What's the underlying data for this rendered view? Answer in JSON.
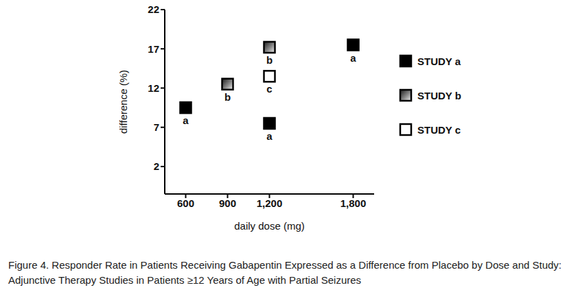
{
  "chart_data": {
    "type": "scatter",
    "title": "Figure 4. Responder Rate in Patients Receiving Gabapentin Expressed as a Difference from Placebo by Dose and Study: Adjunctive Therapy Studies in Patients ≥12 Years of Age with Partial Seizures",
    "x_label": "daily dose (mg)",
    "y_label": "difference (%)",
    "xlim": [
      450,
      1950
    ],
    "xticks": [
      600,
      900,
      {
        "value": 1200,
        "label": "1,200"
      },
      {
        "value": 1800,
        "label": "1,800"
      }
    ],
    "ylim": [
      -1.5,
      22
    ],
    "yticks": [
      2,
      7,
      12,
      17,
      22
    ],
    "grid": false,
    "legend": "right",
    "series": [
      {
        "name": "STUDY a",
        "label": "a",
        "color": "#000000",
        "marker": "square",
        "x": [
          600,
          1200,
          1800
        ],
        "values": [
          9.5,
          7.5,
          17.5
        ]
      },
      {
        "name": "STUDY b",
        "label": "b",
        "color": "#888888",
        "marker": "square",
        "x": [
          900,
          1200
        ],
        "values": [
          12.5,
          17.2
        ]
      },
      {
        "name": "STUDY c",
        "label": "c",
        "color": "#ffffff",
        "marker": "square",
        "x": [
          1200
        ],
        "values": [
          13.5
        ]
      }
    ]
  }
}
